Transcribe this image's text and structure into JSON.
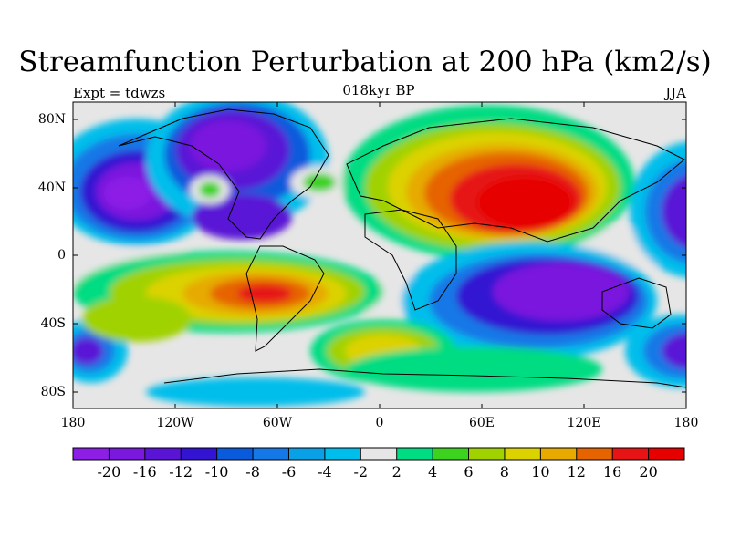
{
  "title": "Streamfunction Perturbation at 200 hPa (km2/s)",
  "subtitle": "018kyr BP",
  "left_label": "Expt = tdwzs",
  "right_label": "JJA",
  "lat_labels": [
    "80N",
    "40N",
    "0",
    "40S",
    "80S"
  ],
  "lon_labels": [
    "180",
    "120W",
    "60W",
    "0",
    "60E",
    "120E",
    "180"
  ],
  "colorbar": {
    "labels": [
      "-20",
      "-16",
      "-12",
      "-10",
      "-8",
      "-6",
      "-4",
      "-2",
      "2",
      "4",
      "6",
      "8",
      "10",
      "12",
      "16",
      "20"
    ],
    "colors": [
      "#8c1ee6",
      "#7a18de",
      "#5a14d6",
      "#3214d2",
      "#0a5adc",
      "#1478e6",
      "#0aa0e6",
      "#00beeb",
      "#e6e6e6",
      "#00dc82",
      "#3cd21e",
      "#a0d200",
      "#dcd200",
      "#e6aa00",
      "#e66400",
      "#e61414",
      "#e60000"
    ]
  },
  "chart_data": {
    "type": "heatmap",
    "title": "Streamfunction Perturbation at 200 hPa (km2/s)",
    "subtitle": "018kyr BP",
    "xlim": [
      -180,
      180
    ],
    "ylim": [
      -90,
      90
    ],
    "levels": [
      -20,
      -16,
      -12,
      -10,
      -8,
      -6,
      -4,
      -2,
      2,
      4,
      6,
      8,
      10,
      12,
      16,
      20
    ],
    "features": [
      {
        "lon": 75,
        "lat": 35,
        "value": 22
      },
      {
        "lon": -85,
        "lat": -22,
        "value": 16
      },
      {
        "lon": -160,
        "lat": 40,
        "value": -18
      },
      {
        "lon": -90,
        "lat": 60,
        "value": -16
      },
      {
        "lon": 110,
        "lat": -35,
        "value": -18
      },
      {
        "lon": 170,
        "lat": -50,
        "value": -16
      },
      {
        "lon": -160,
        "lat": -55,
        "value": -12
      },
      {
        "lon": -5,
        "lat": -58,
        "value": 10
      },
      {
        "lon": 170,
        "lat": 35,
        "value": -18
      }
    ]
  }
}
